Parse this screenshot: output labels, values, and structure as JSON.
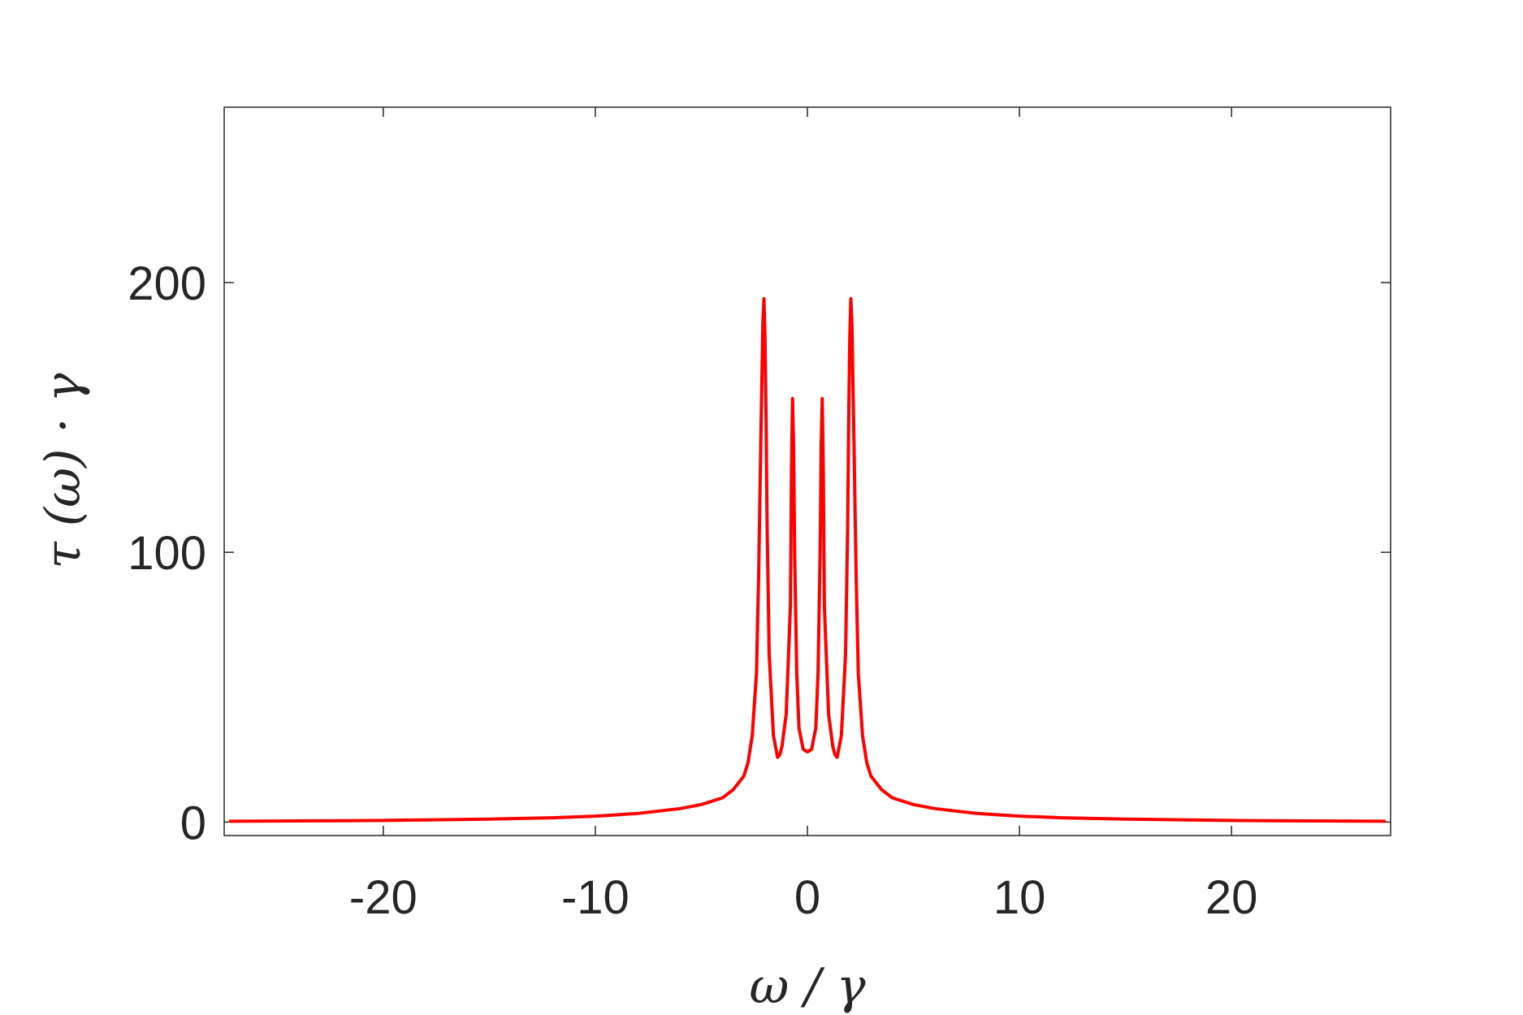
{
  "chart_data": {
    "type": "line",
    "title": "",
    "xlabel": "ω / γ",
    "ylabel": "τ (ω) · γ",
    "xlim": [
      -27.5,
      27.5
    ],
    "ylim": [
      -5,
      265
    ],
    "xticks": [
      -20,
      -10,
      0,
      10,
      20
    ],
    "xtick_labels": [
      "-20",
      "-10",
      "0",
      "10",
      "20"
    ],
    "yticks": [
      0,
      100,
      200
    ],
    "ytick_labels": [
      "0",
      "100",
      "200"
    ],
    "grid": false,
    "legend": "none",
    "series": [
      {
        "color": "#ff0000",
        "x": [
          -27.2,
          -25,
          -22,
          -20,
          -18,
          -15,
          -12,
          -10,
          -8,
          -6,
          -5,
          -4,
          -3.5,
          -3,
          -2.8,
          -2.6,
          -2.4,
          -2.3,
          -2.2,
          -2.1,
          -2.05,
          -2.0,
          -1.95,
          -1.9,
          -1.8,
          -1.6,
          -1.4,
          -1.3,
          -1.2,
          -1.0,
          -0.8,
          -0.75,
          -0.7,
          -0.65,
          -0.6,
          -0.5,
          -0.4,
          -0.2,
          0,
          0.2,
          0.4,
          0.5,
          0.6,
          0.65,
          0.7,
          0.75,
          0.8,
          1.0,
          1.2,
          1.3,
          1.4,
          1.6,
          1.8,
          1.9,
          1.95,
          2.0,
          2.05,
          2.1,
          2.2,
          2.3,
          2.4,
          2.6,
          2.8,
          3,
          3.5,
          4,
          5,
          6,
          8,
          10,
          12,
          15,
          18,
          20,
          22,
          25,
          27.2
        ],
        "y": [
          0.3,
          0.4,
          0.5,
          0.6,
          0.8,
          1.1,
          1.6,
          2.2,
          3.2,
          5,
          6.5,
          9,
          12,
          17,
          22,
          32,
          55,
          90,
          140,
          185,
          194,
          180,
          150,
          110,
          62,
          32,
          24,
          25,
          28,
          40,
          80,
          130,
          157,
          140,
          100,
          55,
          35,
          27,
          26,
          27,
          35,
          55,
          100,
          140,
          157,
          130,
          80,
          40,
          28,
          25,
          24,
          32,
          62,
          110,
          150,
          180,
          194,
          185,
          140,
          90,
          55,
          32,
          22,
          17,
          12,
          9,
          6.5,
          5,
          3.2,
          2.2,
          1.6,
          1.1,
          0.8,
          0.6,
          0.5,
          0.4,
          0.3
        ]
      }
    ]
  }
}
